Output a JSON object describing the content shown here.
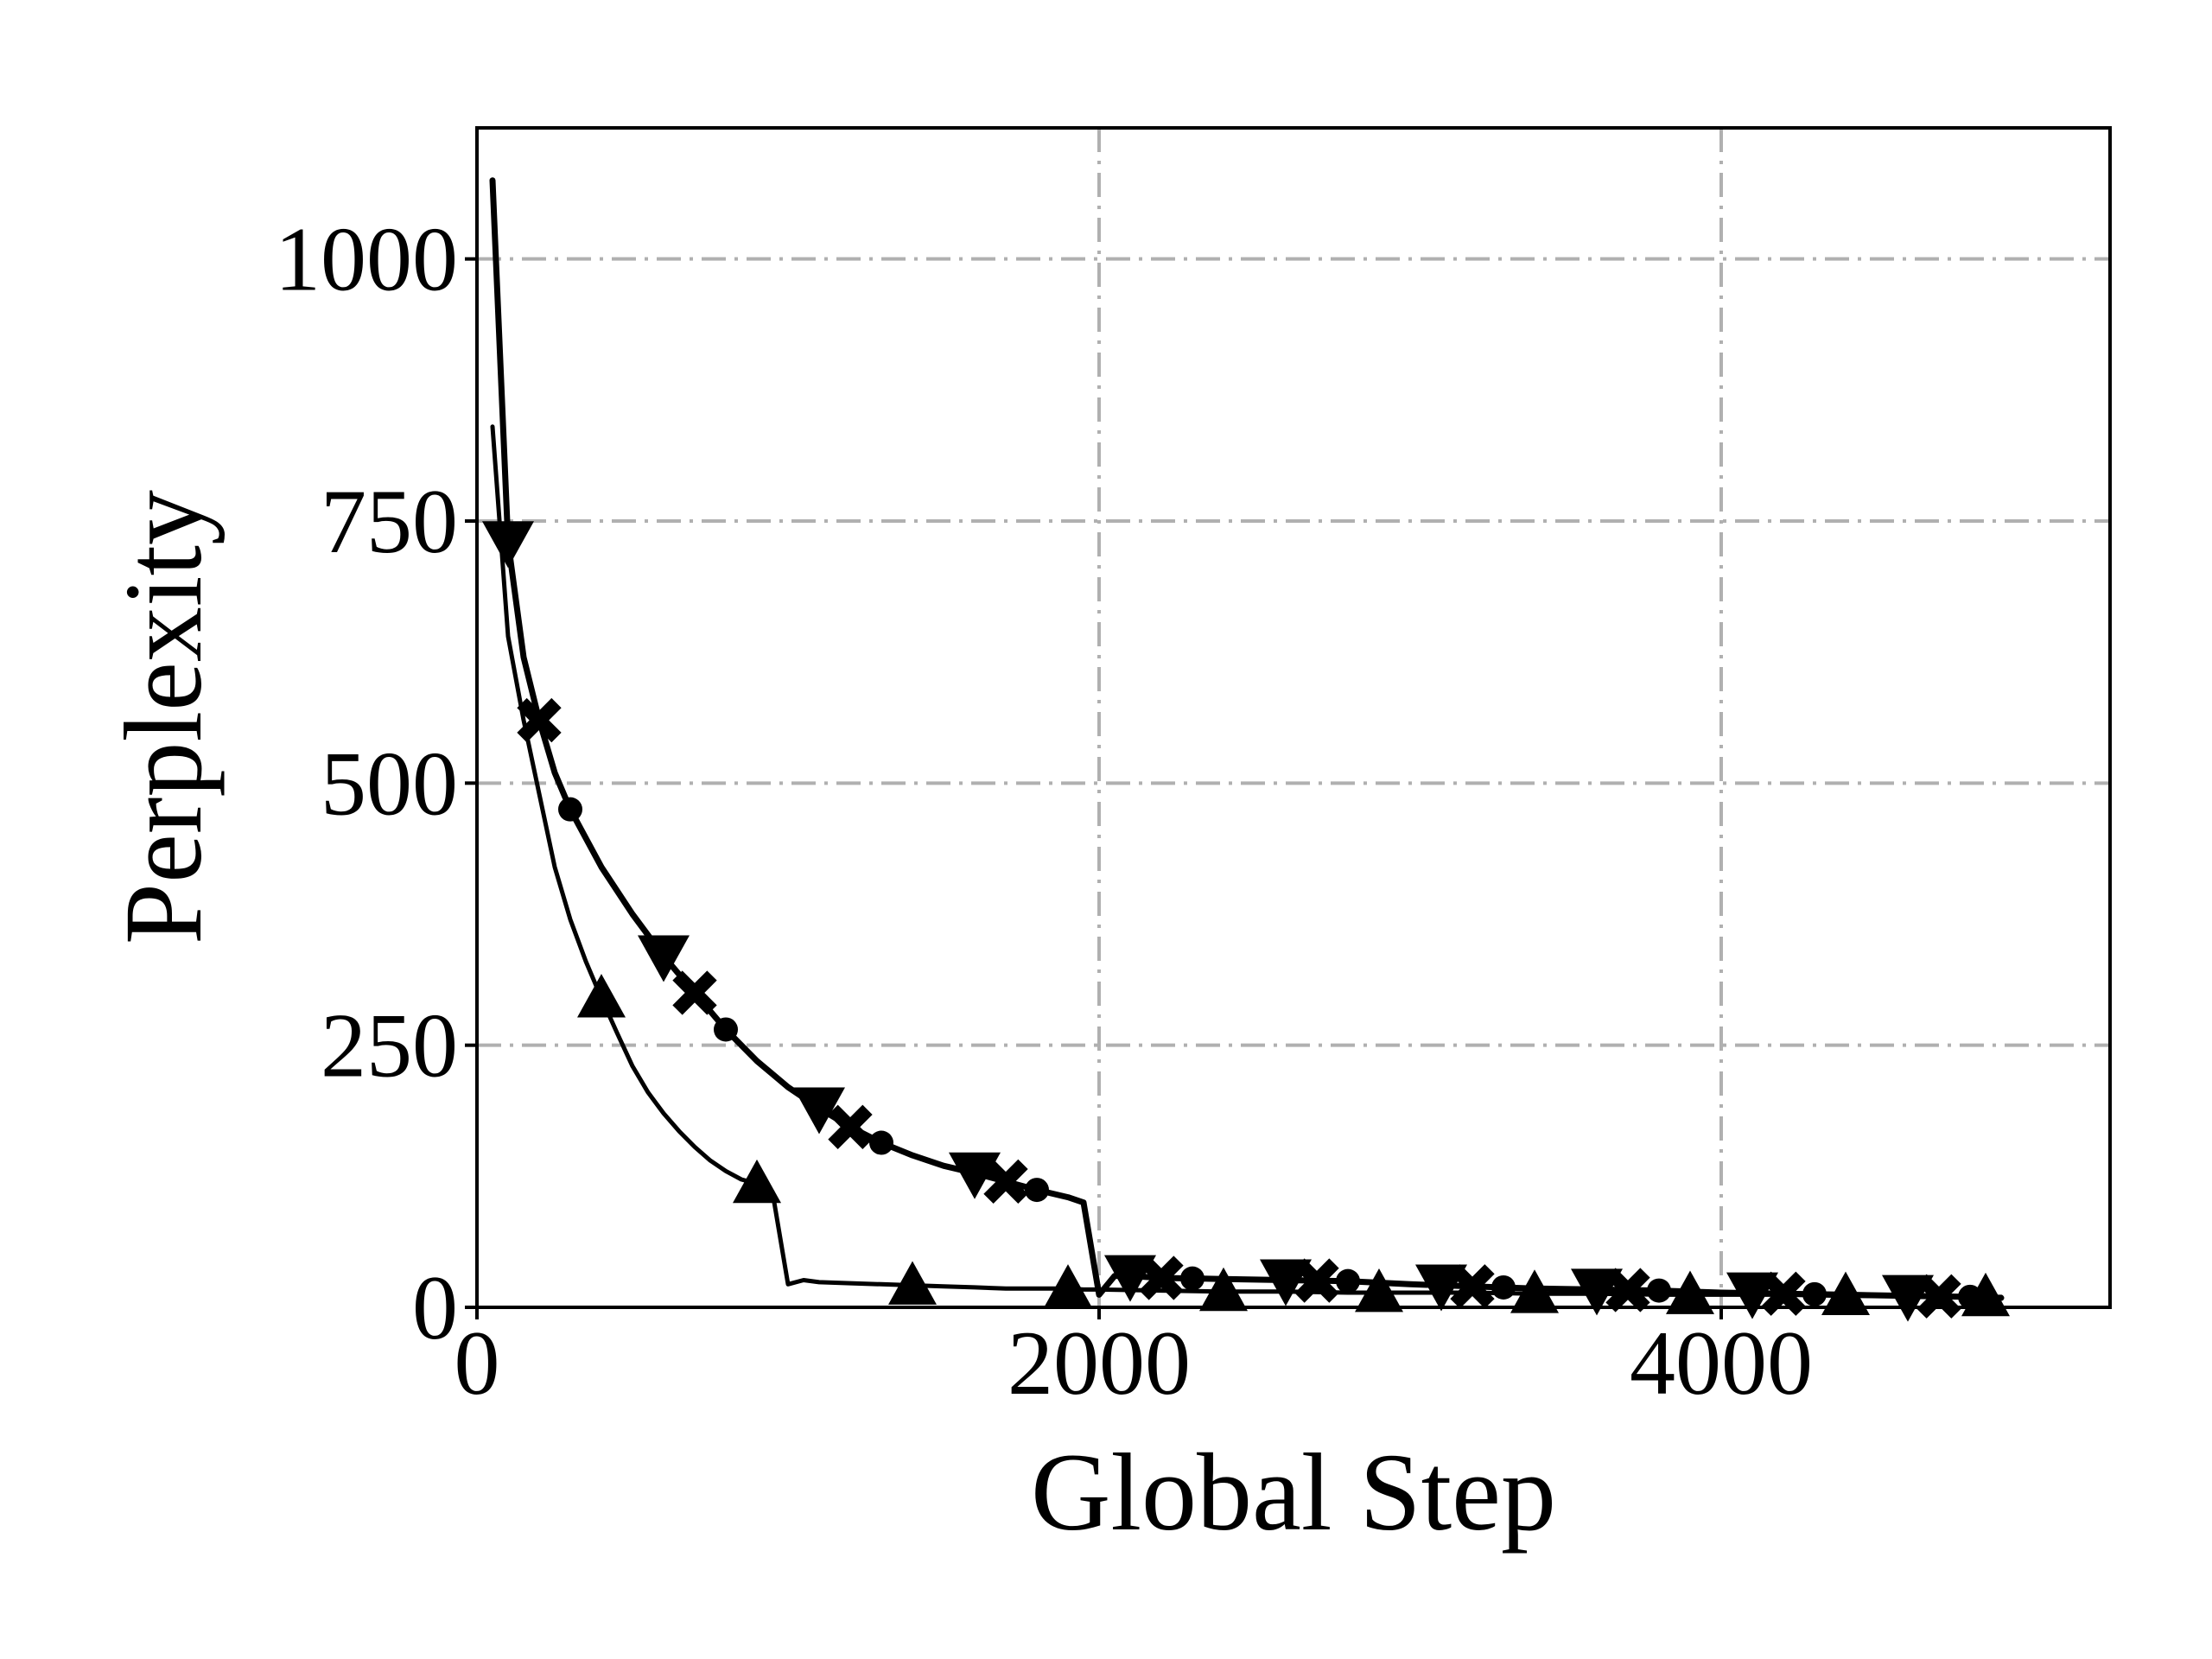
{
  "chart_data": {
    "type": "line",
    "title": "",
    "xlabel": "Global Step",
    "ylabel": "Perplexity",
    "xlim": [
      0,
      5250
    ],
    "ylim": [
      0,
      1125
    ],
    "x_ticks": [
      "0",
      "2000",
      "4000"
    ],
    "x_tick_values": [
      0,
      2000,
      4000
    ],
    "y_ticks": [
      "0",
      "250",
      "500",
      "750",
      "1000"
    ],
    "y_tick_values": [
      0,
      250,
      500,
      750,
      1000
    ],
    "grid": true,
    "legend": "none",
    "colors": {
      "line": "#000000",
      "grid": "#b0b0b0"
    },
    "series": [
      {
        "marker": "triangle-up",
        "line_width": 5,
        "x": [
          50,
          100,
          150,
          200,
          250,
          300,
          350,
          400,
          450,
          500,
          550,
          600,
          650,
          700,
          750,
          800,
          850,
          900,
          950,
          1000,
          1050,
          1100,
          1200,
          1300,
          1400,
          1500,
          1600,
          1700,
          1800,
          1900,
          1950,
          2000,
          2200,
          2400,
          2600,
          2800,
          3000,
          3200,
          3400,
          3600,
          3800,
          4000,
          4200,
          4400,
          4600,
          4800,
          4900
        ],
        "y": [
          840,
          640,
          560,
          490,
          420,
          370,
          330,
          295,
          262,
          230,
          205,
          185,
          168,
          153,
          140,
          130,
          122,
          118,
          110,
          22,
          26,
          24,
          23,
          22,
          21,
          20,
          19,
          18,
          18,
          18,
          17,
          17,
          16,
          15,
          15,
          14,
          14,
          14,
          13,
          13,
          12,
          12,
          12,
          11,
          11,
          10,
          10
        ],
        "marker_x": [
          400,
          900,
          1400,
          1900,
          2400,
          2900,
          3400,
          3900,
          4400,
          4850
        ]
      },
      {
        "marker": "triangle-down",
        "line_width": 7,
        "x": [
          50,
          100,
          150,
          200,
          250,
          300,
          400,
          500,
          600,
          700,
          800,
          900,
          1000,
          1100,
          1200,
          1300,
          1400,
          1500,
          1600,
          1700,
          1800,
          1900,
          1950,
          2000,
          2050,
          2100,
          2200,
          2400,
          2600,
          2800,
          3000,
          3200,
          3400,
          3600,
          3800,
          4000,
          4200,
          4400,
          4600,
          4800,
          4900
        ],
        "y": [
          1075,
          730,
          620,
          560,
          510,
          475,
          420,
          375,
          335,
          300,
          265,
          235,
          210,
          190,
          172,
          157,
          145,
          135,
          128,
          120,
          112,
          105,
          100,
          12,
          30,
          30,
          28,
          27,
          26,
          25,
          22,
          20,
          18,
          17,
          16,
          14,
          13,
          12,
          11,
          10,
          9
        ],
        "marker_x": [
          100,
          600,
          1100,
          1600,
          2100,
          2600,
          3100,
          3600,
          4100,
          4600
        ]
      }
    ],
    "series_b_cross_x": [
      200,
      700,
      1200,
      1700,
      2200,
      2700,
      3200,
      3700,
      4200,
      4700
    ],
    "series_b_dot_x": [
      300,
      800,
      1300,
      1800,
      2300,
      2800,
      3300,
      3800,
      4300,
      4800
    ]
  }
}
